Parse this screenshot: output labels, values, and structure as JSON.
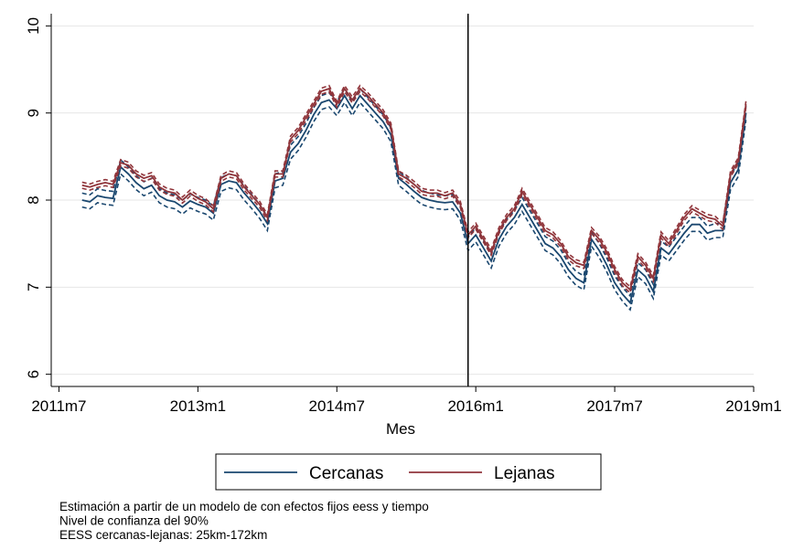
{
  "chart_data": {
    "type": "line",
    "x_label": "Mes",
    "x": [
      "2011m10",
      "2011m11",
      "2011m12",
      "2012m1",
      "2012m2",
      "2012m3",
      "2012m4",
      "2012m5",
      "2012m6",
      "2012m7",
      "2012m8",
      "2012m9",
      "2012m10",
      "2012m11",
      "2012m12",
      "2013m1",
      "2013m2",
      "2013m3",
      "2013m4",
      "2013m5",
      "2013m6",
      "2013m7",
      "2013m8",
      "2013m9",
      "2013m10",
      "2013m11",
      "2013m12",
      "2014m1",
      "2014m2",
      "2014m3",
      "2014m4",
      "2014m5",
      "2014m6",
      "2014m7",
      "2014m8",
      "2014m9",
      "2014m10",
      "2014m11",
      "2014m12",
      "2015m1",
      "2015m2",
      "2015m3",
      "2015m4",
      "2015m5",
      "2015m6",
      "2015m7",
      "2015m8",
      "2015m9",
      "2015m10",
      "2015m11",
      "2015m12",
      "2016m1",
      "2016m2",
      "2016m3",
      "2016m4",
      "2016m5",
      "2016m6",
      "2016m7",
      "2016m8",
      "2016m9",
      "2016m10",
      "2016m11",
      "2016m12",
      "2017m1",
      "2017m2",
      "2017m3",
      "2017m4",
      "2017m5",
      "2017m6",
      "2017m7",
      "2017m8",
      "2017m9",
      "2017m10",
      "2017m11",
      "2017m12",
      "2018m1",
      "2018m2",
      "2018m3",
      "2018m4",
      "2018m5",
      "2018m6",
      "2018m7",
      "2018m8",
      "2018m9",
      "2018m10",
      "2018m11",
      "2018m12"
    ],
    "series": [
      {
        "name": "Cercanas",
        "color": "#1a476f",
        "ci": 0.08,
        "values": [
          8.0,
          7.98,
          8.05,
          8.03,
          8.02,
          8.38,
          8.3,
          8.2,
          8.13,
          8.17,
          8.05,
          8.0,
          7.98,
          7.92,
          7.99,
          7.95,
          7.92,
          7.85,
          8.18,
          8.22,
          8.2,
          8.08,
          7.98,
          7.87,
          7.73,
          8.22,
          8.25,
          8.55,
          8.65,
          8.8,
          8.98,
          9.12,
          9.15,
          9.05,
          9.2,
          9.05,
          9.2,
          9.1,
          9.0,
          8.9,
          8.75,
          8.25,
          8.18,
          8.1,
          8.03,
          8.0,
          7.98,
          7.97,
          7.98,
          7.85,
          7.5,
          7.6,
          7.45,
          7.3,
          7.55,
          7.7,
          7.8,
          7.95,
          7.8,
          7.65,
          7.5,
          7.45,
          7.35,
          7.2,
          7.1,
          7.05,
          7.55,
          7.42,
          7.25,
          7.05,
          6.92,
          6.82,
          7.2,
          7.12,
          6.95,
          7.45,
          7.38,
          7.5,
          7.62,
          7.72,
          7.72,
          7.62,
          7.65,
          7.65,
          8.2,
          8.35,
          9.0
        ]
      },
      {
        "name": "Lejanas",
        "color": "#90353b",
        "ci": 0.035,
        "values": [
          8.17,
          8.15,
          8.18,
          8.2,
          8.18,
          8.43,
          8.4,
          8.3,
          8.25,
          8.28,
          8.15,
          8.1,
          8.08,
          8.0,
          8.08,
          8.02,
          7.98,
          7.9,
          8.25,
          8.3,
          8.28,
          8.15,
          8.05,
          7.95,
          7.8,
          8.3,
          8.3,
          8.7,
          8.8,
          8.95,
          9.1,
          9.25,
          9.28,
          9.1,
          9.28,
          9.15,
          9.28,
          9.2,
          9.1,
          9.0,
          8.85,
          8.3,
          8.25,
          8.18,
          8.1,
          8.08,
          8.08,
          8.05,
          8.08,
          7.95,
          7.6,
          7.7,
          7.55,
          7.4,
          7.65,
          7.8,
          7.9,
          8.1,
          7.95,
          7.8,
          7.65,
          7.6,
          7.5,
          7.35,
          7.28,
          7.25,
          7.65,
          7.55,
          7.4,
          7.2,
          7.05,
          6.97,
          7.35,
          7.25,
          7.1,
          7.6,
          7.5,
          7.65,
          7.8,
          7.9,
          7.85,
          7.8,
          7.78,
          7.7,
          8.3,
          8.45,
          9.1
        ]
      }
    ],
    "vline": "2015m12",
    "xlim": [
      "2011m6",
      "2019m1"
    ],
    "xticks": [
      "2011m7",
      "2013m1",
      "2014m7",
      "2016m1",
      "2017m7",
      "2019m1"
    ],
    "ylim": [
      5.86,
      10.14
    ],
    "yticks": [
      6,
      7,
      8,
      9,
      10
    ],
    "grid": true,
    "notes": [
      "Estimación a partir de un modelo de con efectos fijos eess y tiempo",
      "Nivel de confianza del 90%",
      "EESS cercanas-lejanas: 25km-172km"
    ]
  }
}
